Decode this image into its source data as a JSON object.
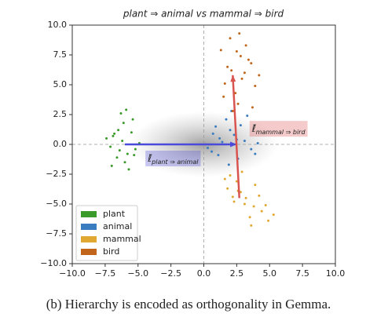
{
  "chart_data": {
    "type": "scatter",
    "title": "plant ⇒ animal vs mammal ⇒ bird",
    "xlim": [
      -10,
      10
    ],
    "ylim": [
      -10,
      10
    ],
    "xticks": [
      {
        "value": -10,
        "label": "−10.0"
      },
      {
        "value": -7.5,
        "label": "−7.5"
      },
      {
        "value": -5,
        "label": "−5.0"
      },
      {
        "value": -2.5,
        "label": "−2.5"
      },
      {
        "value": 0,
        "label": "0.0"
      },
      2.5,
      {
        "value": 5,
        "label": "5.0"
      },
      7.5,
      {
        "value": 10,
        "label": "10.0"
      }
    ],
    "yticks": [
      {
        "value": -10,
        "label": "−10.0"
      },
      {
        "value": -7.5,
        "label": "−7.5"
      },
      {
        "value": -5,
        "label": "−5.0"
      },
      {
        "value": -2.5,
        "label": "−2.5"
      },
      {
        "value": 0,
        "label": "0.0"
      },
      2.5,
      {
        "value": 5,
        "label": "5.0"
      },
      7.5,
      {
        "value": 10,
        "label": "10.0"
      }
    ],
    "legend": "lower left",
    "series": [
      {
        "name": "plant",
        "color": "#3a9a2a",
        "x": [
          -6.2,
          -5.8,
          -6.5,
          -7.1,
          -5.4,
          -6.0,
          -6.8,
          -5.2,
          -6.3,
          -7.4,
          -5.7,
          -6.1,
          -4.9,
          -6.6,
          -5.5,
          -7.0,
          -6.4,
          -5.9,
          -6.9,
          -5.3
        ],
        "values": [
          0.3,
          -0.8,
          1.2,
          -0.2,
          2.1,
          -1.5,
          0.9,
          -0.4,
          2.6,
          0.5,
          -2.1,
          1.8,
          0.1,
          -1.1,
          1.0,
          -1.8,
          -0.5,
          2.9,
          0.7,
          -0.9
        ]
      },
      {
        "name": "animal",
        "color": "#3a7cc0",
        "x": [
          1.2,
          2.0,
          0.6,
          3.1,
          1.7,
          2.6,
          0.9,
          3.6,
          1.4,
          2.3,
          4.1,
          0.3,
          2.8,
          1.9,
          3.3,
          1.1,
          2.5,
          3.9,
          0.7,
          2.1
        ],
        "values": [
          0.5,
          1.2,
          -0.6,
          0.3,
          2.1,
          -1.2,
          1.5,
          -0.4,
          0.2,
          0.8,
          0.1,
          -0.3,
          1.6,
          -1.7,
          2.4,
          -0.9,
          0.4,
          -0.8,
          0.9,
          2.8
        ]
      },
      {
        "name": "mammal",
        "color": "#e0a830",
        "x": [
          2.5,
          3.2,
          2.0,
          3.8,
          2.8,
          4.4,
          1.8,
          3.5,
          2.9,
          4.9,
          2.3,
          3.9,
          3.1,
          5.3,
          2.6,
          4.2,
          1.6,
          3.6,
          4.7,
          2.2
        ],
        "values": [
          -3.1,
          -4.5,
          -2.6,
          -5.2,
          -4.0,
          -5.6,
          -3.7,
          -6.1,
          -2.3,
          -6.4,
          -4.8,
          -3.4,
          -5.0,
          -5.9,
          -3.9,
          -4.3,
          -2.9,
          -6.8,
          -5.1,
          -4.4
        ]
      },
      {
        "name": "bird",
        "color": "#c0651a",
        "x": [
          2.1,
          2.8,
          1.6,
          3.2,
          2.4,
          3.6,
          1.3,
          2.9,
          2.0,
          3.9,
          2.6,
          1.8,
          3.4,
          2.2,
          4.2,
          2.7,
          1.5,
          3.1,
          2.5,
          3.7
        ],
        "values": [
          6.2,
          7.4,
          5.1,
          8.3,
          4.3,
          6.8,
          7.9,
          5.5,
          8.9,
          4.9,
          3.4,
          6.5,
          7.1,
          2.8,
          5.8,
          9.3,
          4.0,
          6.0,
          7.8,
          3.1
        ]
      }
    ],
    "arrows": [
      {
        "label": "ℓ̄",
        "subscript": "plant ⇒ animal",
        "color": "#4a4ad8",
        "from": [
          -6,
          0
        ],
        "to": [
          2.5,
          0
        ]
      },
      {
        "label": "ℓ̄",
        "subscript": "mammal ⇒ bird",
        "color": "#d9534f",
        "from": [
          2.7,
          -4.5
        ],
        "to": [
          2.2,
          5.8
        ]
      }
    ]
  },
  "caption": "(b) Hierarchy is encoded as orthogonality in Gemma."
}
